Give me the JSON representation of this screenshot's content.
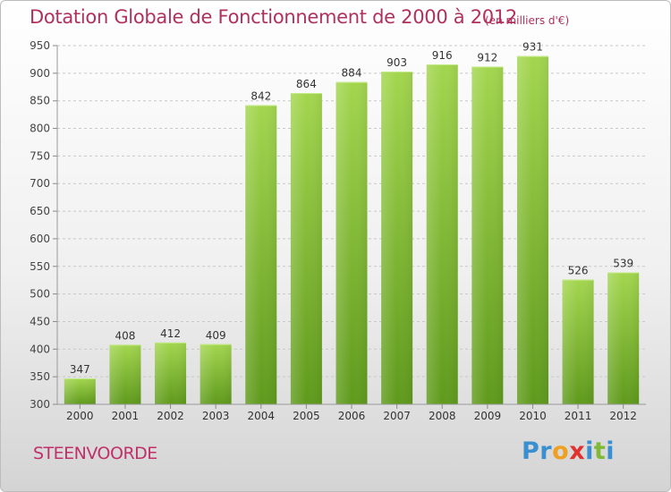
{
  "chart_data": {
    "type": "bar",
    "title": "Dotation Globale de Fonctionnement de 2000 à 2012",
    "subtitle": "(en milliers d'€)",
    "categories": [
      "2000",
      "2001",
      "2002",
      "2003",
      "2004",
      "2005",
      "2006",
      "2007",
      "2008",
      "2009",
      "2010",
      "2011",
      "2012"
    ],
    "values": [
      347,
      408,
      412,
      409,
      842,
      864,
      884,
      903,
      916,
      912,
      931,
      526,
      539
    ],
    "ylim": [
      300,
      950
    ],
    "yticks": [
      300,
      350,
      400,
      450,
      500,
      550,
      600,
      650,
      700,
      750,
      800,
      850,
      900,
      950
    ],
    "grid": true,
    "bar_color": "#7ab32e",
    "bar_color_light": "#9fd14c",
    "title_color": "#b0305e"
  },
  "footer": {
    "commune": "STEENVOORDE"
  },
  "logo": {
    "letters": [
      {
        "ch": "P",
        "color": "#3a8fd0"
      },
      {
        "ch": "r",
        "color": "#3a8fd0"
      },
      {
        "ch": "o",
        "color": "#f0a020"
      },
      {
        "ch": "x",
        "color": "#e03030"
      },
      {
        "ch": "i",
        "color": "#3a8fd0"
      },
      {
        "ch": "t",
        "color": "#80b838"
      },
      {
        "ch": "i",
        "color": "#3a8fd0"
      }
    ]
  }
}
